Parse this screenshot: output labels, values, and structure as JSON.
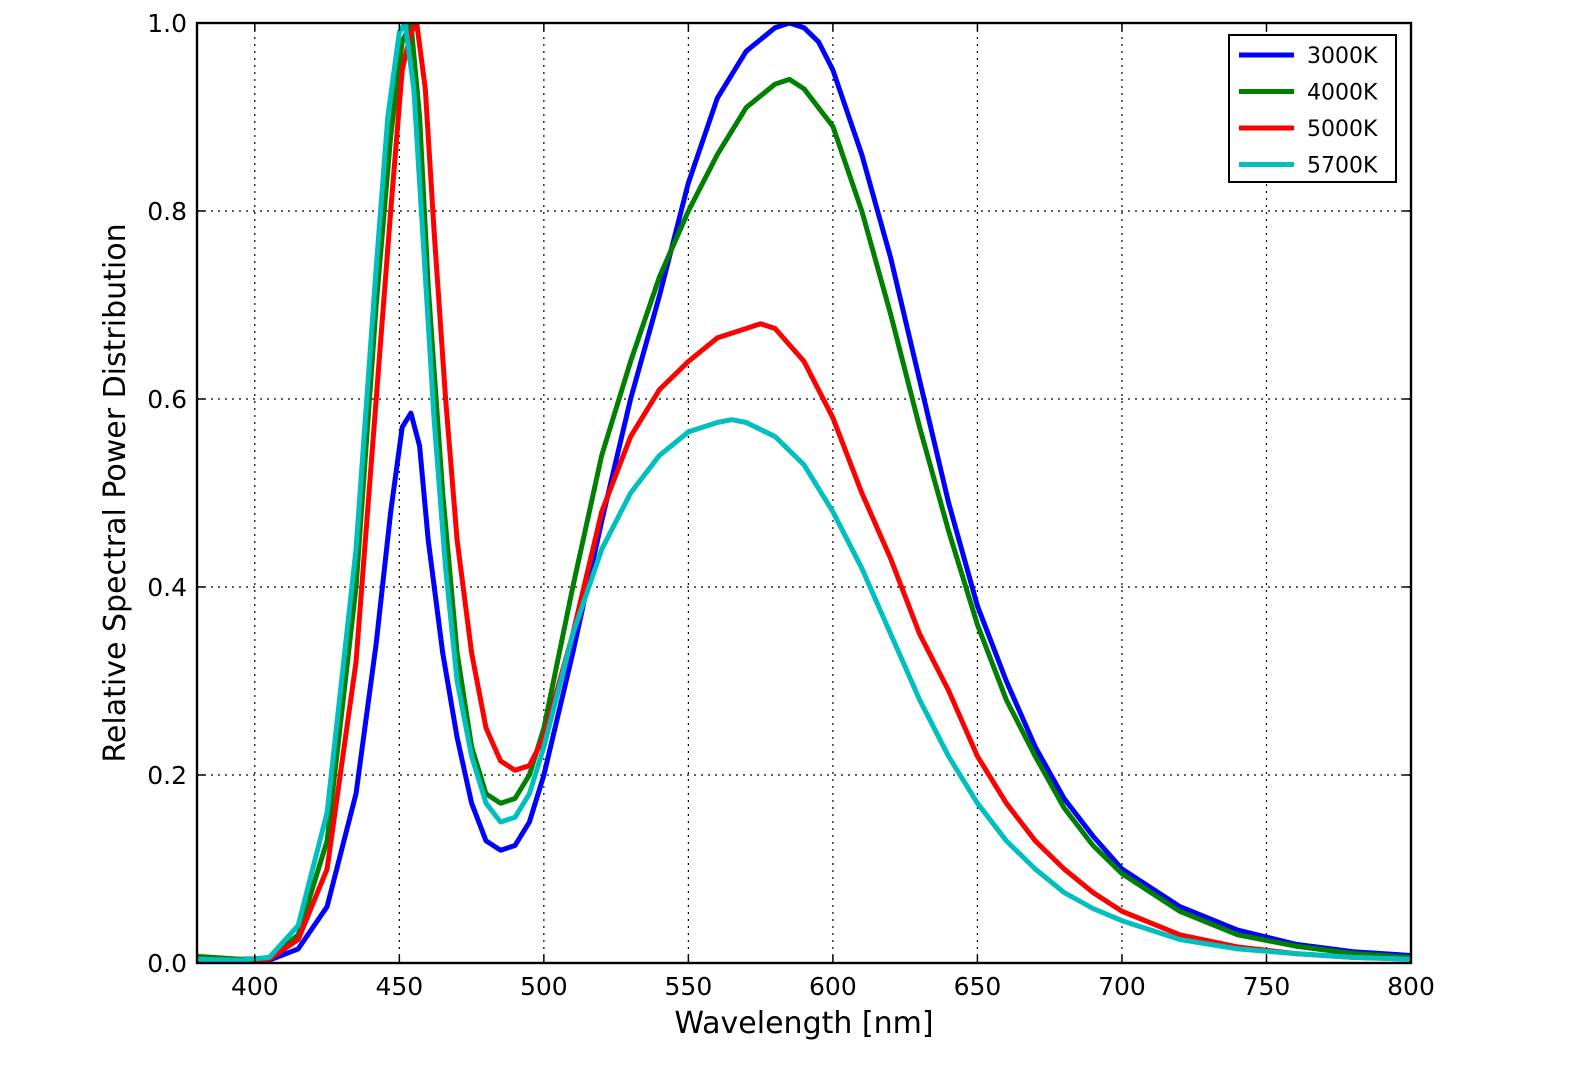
{
  "chart_data": {
    "type": "line",
    "title": "",
    "xlabel": "Wavelength [nm]",
    "ylabel": "Relative Spectral Power Distribution",
    "xlim": [
      380,
      800
    ],
    "ylim": [
      0.0,
      1.0
    ],
    "grid": true,
    "legend_position": "top-right",
    "x_ticks": [
      400,
      450,
      500,
      550,
      600,
      650,
      700,
      750,
      800
    ],
    "x_tick_labels": [
      "400",
      "450",
      "500",
      "550",
      "600",
      "650",
      "700",
      "750",
      "800"
    ],
    "y_ticks": [
      0.0,
      0.2,
      0.4,
      0.6,
      0.8,
      1.0
    ],
    "y_tick_labels": [
      "0.0",
      "0.2",
      "0.4",
      "0.6",
      "0.8",
      "1.0"
    ],
    "series": [
      {
        "name": "3000K",
        "color": "#0000ff",
        "x": [
          380,
          395,
          405,
          415,
          425,
          435,
          442,
          447,
          451,
          454,
          457,
          460,
          465,
          470,
          475,
          480,
          485,
          490,
          495,
          500,
          510,
          520,
          530,
          540,
          550,
          560,
          570,
          580,
          585,
          590,
          595,
          600,
          610,
          620,
          630,
          640,
          650,
          660,
          670,
          680,
          690,
          700,
          720,
          740,
          760,
          780,
          800
        ],
        "y": [
          0.005,
          0.003,
          0.003,
          0.015,
          0.06,
          0.18,
          0.34,
          0.48,
          0.57,
          0.585,
          0.55,
          0.45,
          0.33,
          0.24,
          0.17,
          0.13,
          0.12,
          0.125,
          0.15,
          0.2,
          0.33,
          0.47,
          0.6,
          0.71,
          0.83,
          0.92,
          0.97,
          0.995,
          1.0,
          0.995,
          0.98,
          0.95,
          0.86,
          0.75,
          0.62,
          0.49,
          0.38,
          0.3,
          0.23,
          0.175,
          0.135,
          0.1,
          0.06,
          0.035,
          0.02,
          0.012,
          0.008
        ]
      },
      {
        "name": "4000K",
        "color": "#008000",
        "x": [
          380,
          395,
          405,
          415,
          425,
          435,
          442,
          447,
          451,
          454,
          457,
          460,
          465,
          470,
          475,
          480,
          485,
          490,
          495,
          500,
          510,
          520,
          530,
          540,
          550,
          560,
          570,
          580,
          585,
          590,
          600,
          610,
          620,
          630,
          640,
          650,
          660,
          670,
          680,
          690,
          700,
          720,
          740,
          760,
          780,
          800
        ],
        "y": [
          0.007,
          0.004,
          0.005,
          0.03,
          0.13,
          0.4,
          0.7,
          0.88,
          0.98,
          1.0,
          0.9,
          0.72,
          0.5,
          0.33,
          0.23,
          0.18,
          0.17,
          0.175,
          0.2,
          0.25,
          0.4,
          0.54,
          0.64,
          0.73,
          0.8,
          0.86,
          0.91,
          0.935,
          0.94,
          0.93,
          0.89,
          0.8,
          0.69,
          0.57,
          0.46,
          0.36,
          0.28,
          0.22,
          0.165,
          0.125,
          0.095,
          0.055,
          0.03,
          0.018,
          0.01,
          0.006
        ]
      },
      {
        "name": "5000K",
        "color": "#ff0000",
        "x": [
          380,
          395,
          405,
          415,
          425,
          435,
          442,
          447,
          451,
          454,
          456,
          459,
          462,
          466,
          470,
          475,
          480,
          485,
          490,
          495,
          500,
          510,
          520,
          530,
          540,
          550,
          560,
          570,
          575,
          580,
          590,
          600,
          610,
          620,
          630,
          640,
          650,
          660,
          670,
          680,
          690,
          700,
          720,
          740,
          760,
          780,
          800
        ],
        "y": [
          0.004,
          0.003,
          0.004,
          0.025,
          0.1,
          0.32,
          0.6,
          0.8,
          0.95,
          0.99,
          1.0,
          0.93,
          0.78,
          0.6,
          0.45,
          0.33,
          0.25,
          0.215,
          0.205,
          0.21,
          0.24,
          0.35,
          0.48,
          0.56,
          0.61,
          0.64,
          0.665,
          0.675,
          0.68,
          0.675,
          0.64,
          0.58,
          0.5,
          0.43,
          0.35,
          0.29,
          0.22,
          0.17,
          0.13,
          0.1,
          0.075,
          0.055,
          0.03,
          0.017,
          0.01,
          0.006,
          0.004
        ]
      },
      {
        "name": "5700K",
        "color": "#00bfbf",
        "x": [
          380,
          395,
          405,
          415,
          425,
          435,
          442,
          446,
          450,
          452,
          455,
          458,
          462,
          466,
          470,
          475,
          480,
          485,
          490,
          495,
          500,
          510,
          520,
          530,
          540,
          550,
          560,
          565,
          570,
          580,
          590,
          600,
          610,
          620,
          630,
          640,
          650,
          660,
          670,
          680,
          690,
          700,
          720,
          740,
          760,
          780,
          800
        ],
        "y": [
          0.004,
          0.003,
          0.006,
          0.04,
          0.16,
          0.44,
          0.74,
          0.9,
          0.99,
          1.0,
          0.93,
          0.78,
          0.58,
          0.42,
          0.3,
          0.22,
          0.17,
          0.15,
          0.155,
          0.18,
          0.23,
          0.35,
          0.44,
          0.5,
          0.54,
          0.565,
          0.575,
          0.578,
          0.575,
          0.56,
          0.53,
          0.48,
          0.42,
          0.35,
          0.28,
          0.22,
          0.17,
          0.13,
          0.1,
          0.075,
          0.058,
          0.045,
          0.025,
          0.015,
          0.01,
          0.006,
          0.004
        ]
      }
    ]
  }
}
